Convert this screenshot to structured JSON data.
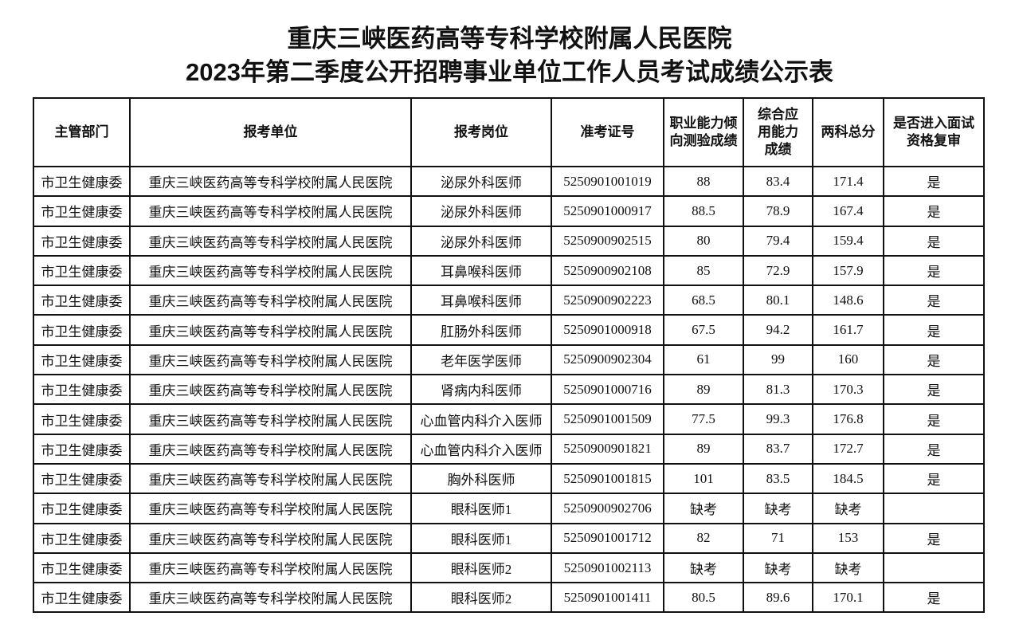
{
  "title_line1": "重庆三峡医药高等专科学校附属人民医院",
  "title_line2": "2023年第二季度公开招聘事业单位工作人员考试成绩公示表",
  "headers": [
    "主管部门",
    "报考单位",
    "报考岗位",
    "准考证号",
    "职业能力倾向测验成绩",
    "综合应用能力成绩",
    "两科总分",
    "是否进入面试资格复审"
  ],
  "rows": [
    [
      "市卫生健康委",
      "重庆三峡医药高等专科学校附属人民医院",
      "泌尿外科医师",
      "5250901001019",
      "88",
      "83.4",
      "171.4",
      "是"
    ],
    [
      "市卫生健康委",
      "重庆三峡医药高等专科学校附属人民医院",
      "泌尿外科医师",
      "5250901000917",
      "88.5",
      "78.9",
      "167.4",
      "是"
    ],
    [
      "市卫生健康委",
      "重庆三峡医药高等专科学校附属人民医院",
      "泌尿外科医师",
      "5250900902515",
      "80",
      "79.4",
      "159.4",
      "是"
    ],
    [
      "市卫生健康委",
      "重庆三峡医药高等专科学校附属人民医院",
      "耳鼻喉科医师",
      "5250900902108",
      "85",
      "72.9",
      "157.9",
      "是"
    ],
    [
      "市卫生健康委",
      "重庆三峡医药高等专科学校附属人民医院",
      "耳鼻喉科医师",
      "5250900902223",
      "68.5",
      "80.1",
      "148.6",
      "是"
    ],
    [
      "市卫生健康委",
      "重庆三峡医药高等专科学校附属人民医院",
      "肛肠外科医师",
      "5250901000918",
      "67.5",
      "94.2",
      "161.7",
      "是"
    ],
    [
      "市卫生健康委",
      "重庆三峡医药高等专科学校附属人民医院",
      "老年医学医师",
      "5250900902304",
      "61",
      "99",
      "160",
      "是"
    ],
    [
      "市卫生健康委",
      "重庆三峡医药高等专科学校附属人民医院",
      "肾病内科医师",
      "5250901000716",
      "89",
      "81.3",
      "170.3",
      "是"
    ],
    [
      "市卫生健康委",
      "重庆三峡医药高等专科学校附属人民医院",
      "心血管内科介入医师",
      "5250901001509",
      "77.5",
      "99.3",
      "176.8",
      "是"
    ],
    [
      "市卫生健康委",
      "重庆三峡医药高等专科学校附属人民医院",
      "心血管内科介入医师",
      "5250900901821",
      "89",
      "83.7",
      "172.7",
      "是"
    ],
    [
      "市卫生健康委",
      "重庆三峡医药高等专科学校附属人民医院",
      "胸外科医师",
      "5250901001815",
      "101",
      "83.5",
      "184.5",
      "是"
    ],
    [
      "市卫生健康委",
      "重庆三峡医药高等专科学校附属人民医院",
      "眼科医师1",
      "5250900902706",
      "缺考",
      "缺考",
      "缺考",
      ""
    ],
    [
      "市卫生健康委",
      "重庆三峡医药高等专科学校附属人民医院",
      "眼科医师1",
      "5250901001712",
      "82",
      "71",
      "153",
      "是"
    ],
    [
      "市卫生健康委",
      "重庆三峡医药高等专科学校附属人民医院",
      "眼科医师2",
      "5250901002113",
      "缺考",
      "缺考",
      "缺考",
      ""
    ],
    [
      "市卫生健康委",
      "重庆三峡医药高等专科学校附属人民医院",
      "眼科医师2",
      "5250901001411",
      "80.5",
      "89.6",
      "170.1",
      "是"
    ]
  ]
}
